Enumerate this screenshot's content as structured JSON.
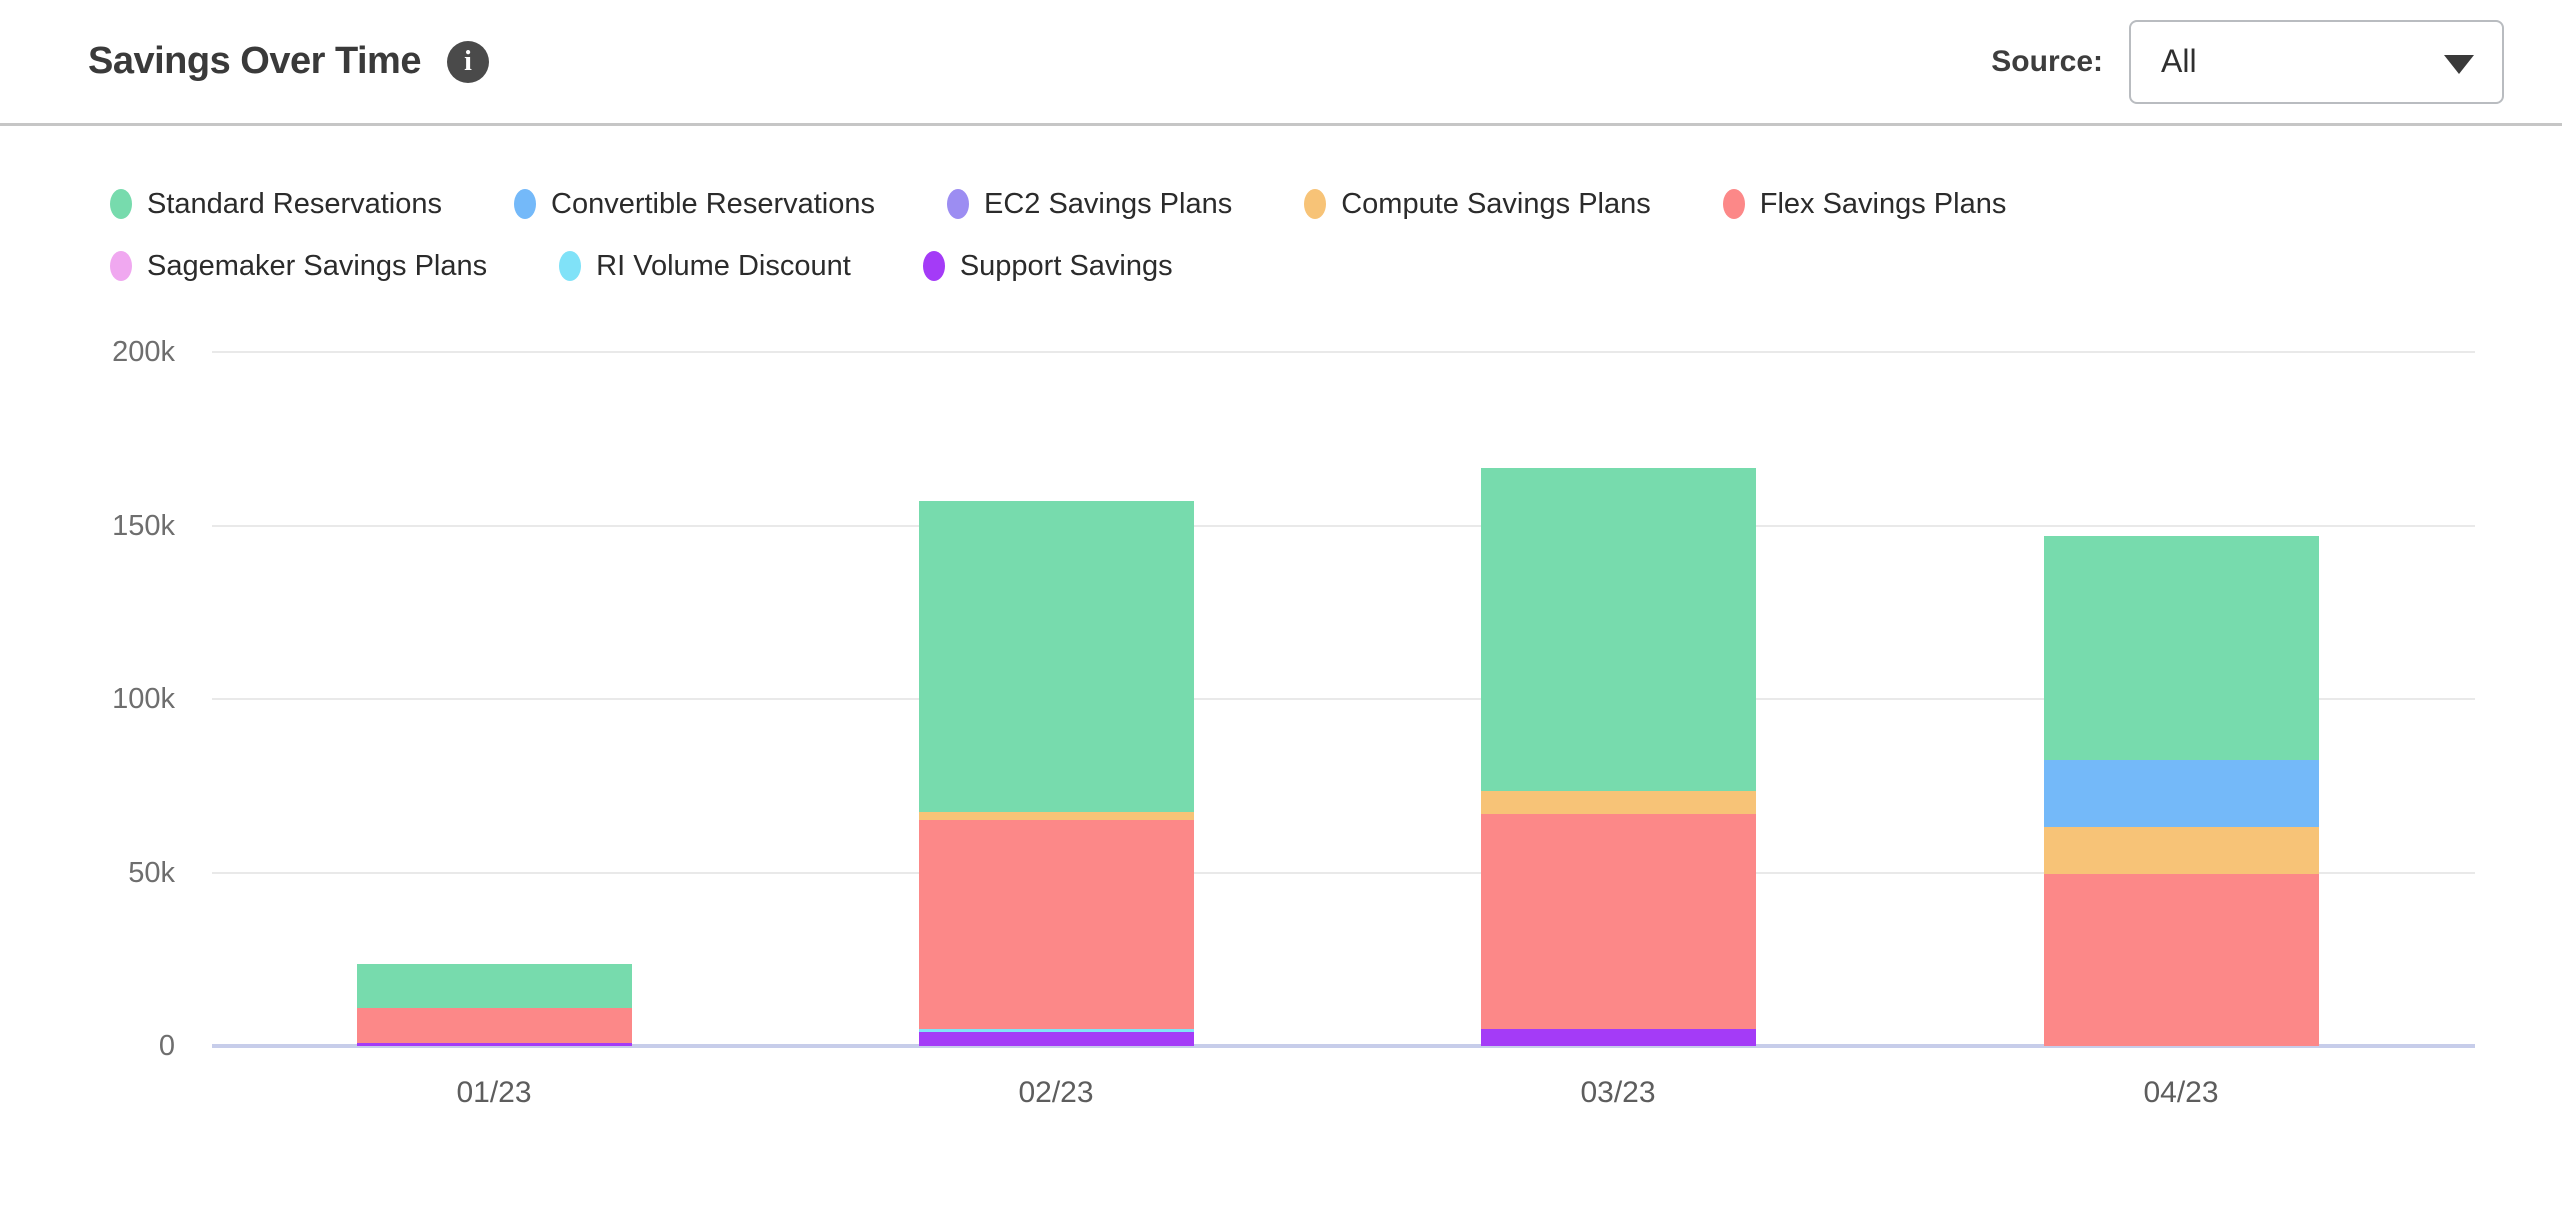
{
  "header": {
    "title": "Savings Over Time",
    "info_icon_glyph": "i",
    "source_label": "Source:",
    "source_value": "All"
  },
  "legend": {
    "items": [
      {
        "label": "Standard Reservations",
        "color": "#77dbad"
      },
      {
        "label": "Convertible Reservations",
        "color": "#74b9f9"
      },
      {
        "label": "EC2 Savings Plans",
        "color": "#9c8df2"
      },
      {
        "label": "Compute Savings Plans",
        "color": "#f7c377"
      },
      {
        "label": "Flex Savings Plans",
        "color": "#fc8888"
      },
      {
        "label": "Sagemaker Savings Plans",
        "color": "#f0a8f0"
      },
      {
        "label": "RI Volume Discount",
        "color": "#80e2f8"
      },
      {
        "label": "Support Savings",
        "color": "#a43bf7"
      }
    ]
  },
  "chart_data": {
    "type": "bar",
    "stacked": true,
    "title": "Savings Over Time",
    "xlabel": "",
    "ylabel": "",
    "values_unit": "thousands",
    "categories": [
      "01/23",
      "02/23",
      "03/23",
      "04/23"
    ],
    "series": [
      {
        "name": "Standard Reservations",
        "color": "#77dbad",
        "values": [
          12.5,
          89.5,
          93,
          64.5
        ]
      },
      {
        "name": "Convertible Reservations",
        "color": "#74b9f9",
        "values": [
          0,
          0,
          0,
          19.5
        ]
      },
      {
        "name": "EC2 Savings Plans",
        "color": "#9c8df2",
        "values": [
          0,
          0,
          0,
          0
        ]
      },
      {
        "name": "Compute Savings Plans",
        "color": "#f7c377",
        "values": [
          0,
          2.5,
          6.5,
          13.5
        ]
      },
      {
        "name": "Flex Savings Plans",
        "color": "#fc8888",
        "values": [
          10,
          60,
          62,
          49.5
        ]
      },
      {
        "name": "Sagemaker Savings Plans",
        "color": "#f0a8f0",
        "values": [
          0,
          0,
          0,
          0
        ]
      },
      {
        "name": "RI Volume Discount",
        "color": "#80e2f8",
        "values": [
          0,
          1,
          0,
          0
        ]
      },
      {
        "name": "Support Savings",
        "color": "#a43bf7",
        "values": [
          1,
          4,
          5,
          0
        ]
      }
    ],
    "stack_order_bottom_to_top": [
      "Support Savings",
      "RI Volume Discount",
      "Sagemaker Savings Plans",
      "Flex Savings Plans",
      "Compute Savings Plans",
      "EC2 Savings Plans",
      "Convertible Reservations",
      "Standard Reservations"
    ],
    "totals_by_category": [
      23.5,
      157,
      166.5,
      147
    ],
    "ylim": [
      0,
      200
    ],
    "y_ticks": [
      {
        "value": 0,
        "label": "0"
      },
      {
        "value": 50,
        "label": "50k"
      },
      {
        "value": 100,
        "label": "100k"
      },
      {
        "value": 150,
        "label": "150k"
      },
      {
        "value": 200,
        "label": "200k"
      }
    ],
    "grid": true,
    "legend_position": "top",
    "grid_color": "#e9e9e9",
    "axis_line_color": "#c7cdea"
  }
}
